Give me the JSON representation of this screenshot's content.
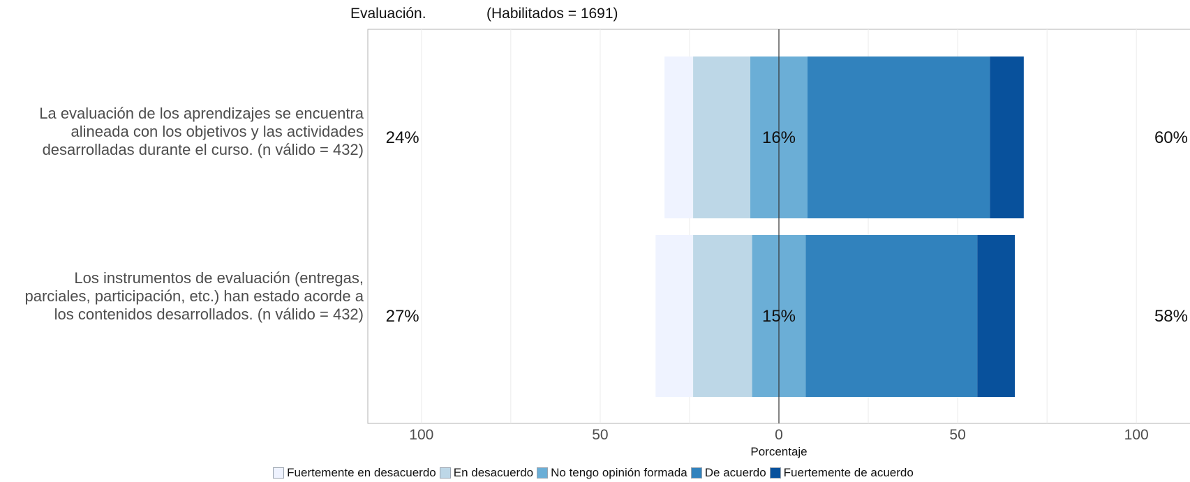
{
  "header": {
    "title_left": "Evaluación.",
    "title_right": "(Habilitados = 1691)"
  },
  "chart_data": {
    "type": "bar",
    "orientation": "horizontal",
    "stacked": true,
    "diverging": true,
    "xlabel": "Porcentaje",
    "xlim": [
      -115,
      115
    ],
    "xticks": [
      -100,
      -50,
      0,
      50,
      100
    ],
    "xtick_labels": [
      "100",
      "50",
      "0",
      "50",
      "100"
    ],
    "grid": true,
    "legend_position": "bottom",
    "categories": [
      "La evaluación de los aprendizajes se encuentra alineada con los objetivos y las actividades desarrolladas durante el curso. (n válido = 432)",
      "Los instrumentos de evaluación (entregas, parciales, participación, etc.)  han estado acorde a los contenidos desarrollados. (n válido = 432)"
    ],
    "series": [
      {
        "name": "Fuertemente en desacuerdo",
        "color": "#eff3ff",
        "values": [
          8,
          10.5
        ]
      },
      {
        "name": "En desacuerdo",
        "color": "#bdd7e7",
        "values": [
          16,
          16.5
        ]
      },
      {
        "name": "No tengo opinión formada",
        "color": "#6baed6",
        "values": [
          16,
          15
        ]
      },
      {
        "name": "De acuerdo",
        "color": "#3182bd",
        "values": [
          51,
          48
        ]
      },
      {
        "name": "Fuertemente de acuerdo",
        "color": "#08519c",
        "values": [
          9.5,
          10.5
        ]
      }
    ],
    "left_labels": [
      "24%",
      "27%"
    ],
    "center_labels": [
      "16%",
      "15%"
    ],
    "right_labels": [
      "60%",
      "58%"
    ]
  }
}
